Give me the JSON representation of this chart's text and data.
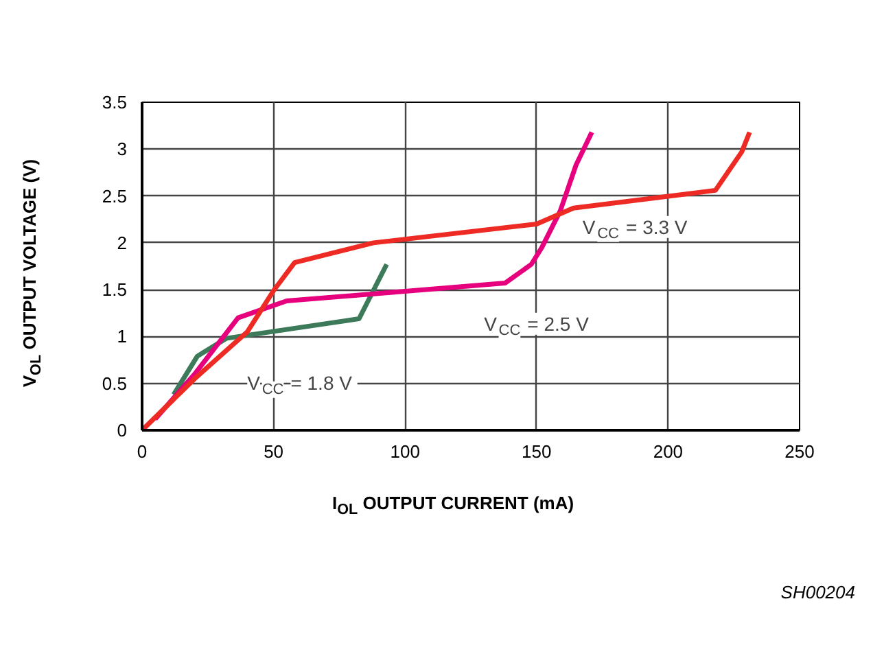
{
  "chart_data": {
    "type": "line",
    "xlabel": "I$_{OL}$ OUTPUT CURRENT (mA)",
    "ylabel": "V$_{OL}$ OUTPUT VOLTAGE (V)",
    "xlim": [
      0,
      250
    ],
    "ylim": [
      0,
      3.5
    ],
    "xticks": [
      0,
      50,
      100,
      150,
      200,
      250
    ],
    "yticks": [
      0,
      0.5,
      1,
      1.5,
      2,
      2.5,
      3,
      3.5
    ],
    "grid": true,
    "marker": "none",
    "line_style": "solid",
    "series": [
      {
        "color": "#3d7a5a",
        "x": [
          12,
          21,
          32,
          82.5,
          93
        ],
        "values": [
          0.38,
          0.79,
          0.98,
          1.19,
          1.77
        ]
      },
      {
        "color": "#e6007e",
        "x": [
          5,
          20,
          36.5,
          55,
          138,
          148,
          152,
          159,
          165,
          171
        ],
        "values": [
          0.12,
          0.6,
          1.2,
          1.38,
          1.57,
          1.77,
          1.95,
          2.34,
          2.83,
          3.18
        ]
      },
      {
        "color": "#ee2a24",
        "x": [
          0,
          20,
          40,
          50,
          58,
          88,
          150,
          164,
          218,
          228,
          231
        ],
        "values": [
          0,
          0.55,
          1.05,
          1.49,
          1.79,
          2.0,
          2.2,
          2.37,
          2.56,
          2.97,
          3.18
        ]
      }
    ],
    "annotations": [
      "V$_{CC}$ = 1.8 V",
      "V$_{CC}$ = 2.5 V",
      "V$_{CC}$ = 3.3 V",
      "SH00204"
    ]
  }
}
